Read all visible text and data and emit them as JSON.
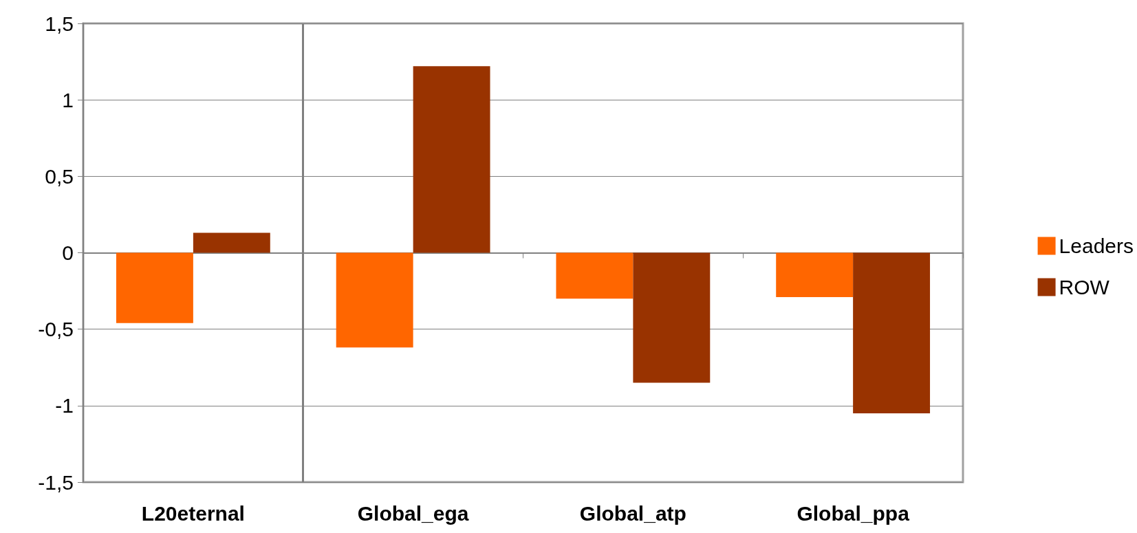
{
  "chart_data": {
    "type": "bar",
    "categories": [
      "L20eternal",
      "Global_ega",
      "Global_atp",
      "Global_ppa"
    ],
    "series": [
      {
        "name": "Leaders",
        "color": "#ff6600",
        "values": [
          -0.46,
          -0.62,
          -0.3,
          -0.29
        ]
      },
      {
        "name": "ROW",
        "color": "#993300",
        "values": [
          0.13,
          1.22,
          -0.85,
          -1.05
        ]
      }
    ],
    "ylim": [
      -1.5,
      1.5
    ],
    "yticks": [
      {
        "value": -1.5,
        "label": "-1,5"
      },
      -1,
      {
        "value": -0.5,
        "label": "-0,5"
      },
      0,
      {
        "value": 0.5,
        "label": "0,5"
      },
      1,
      {
        "value": 1.5,
        "label": "1,5"
      }
    ],
    "grid": "y",
    "legend": "right"
  }
}
